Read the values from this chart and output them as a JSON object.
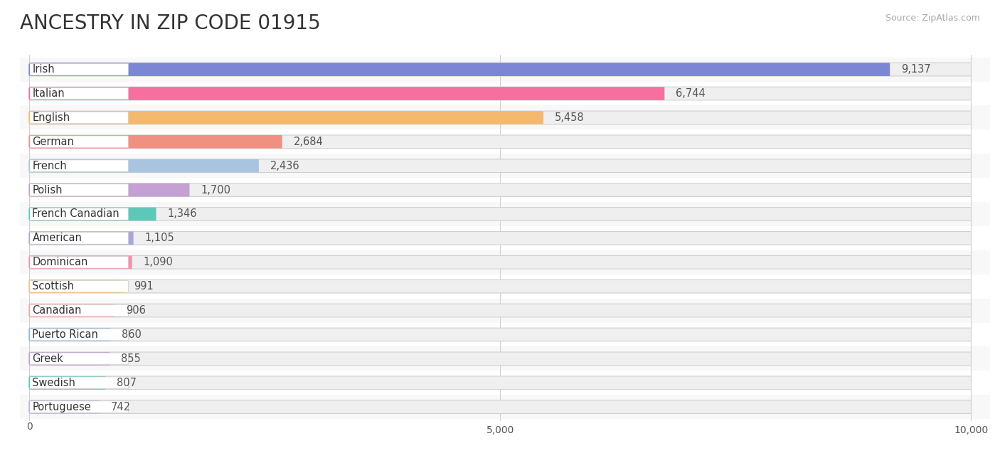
{
  "title": "ANCESTRY IN ZIP CODE 01915",
  "source": "Source: ZipAtlas.com",
  "categories": [
    "Irish",
    "Italian",
    "English",
    "German",
    "French",
    "Polish",
    "French Canadian",
    "American",
    "Dominican",
    "Scottish",
    "Canadian",
    "Puerto Rican",
    "Greek",
    "Swedish",
    "Portuguese"
  ],
  "values": [
    9137,
    6744,
    5458,
    2684,
    2436,
    1700,
    1346,
    1105,
    1090,
    991,
    906,
    860,
    855,
    807,
    742
  ],
  "bar_colors": [
    "#7b86d4",
    "#f76f9e",
    "#f5b96e",
    "#f09080",
    "#a8c4e0",
    "#c4a0d4",
    "#5ec8b8",
    "#a8a8d8",
    "#f78fac",
    "#f5c080",
    "#f0a898",
    "#88b8e8",
    "#c0a0d0",
    "#5ecabc",
    "#b0b4e0"
  ],
  "bar_bg_color": "#efefef",
  "xlim": [
    0,
    10000
  ],
  "xticks": [
    0,
    5000,
    10000
  ],
  "title_fontsize": 20,
  "label_fontsize": 10.5,
  "value_fontsize": 10.5,
  "bg_color": "#ffffff",
  "grid_color": "#d0d0d0",
  "row_bg_colors": [
    "#f8f8f8",
    "#ffffff"
  ]
}
